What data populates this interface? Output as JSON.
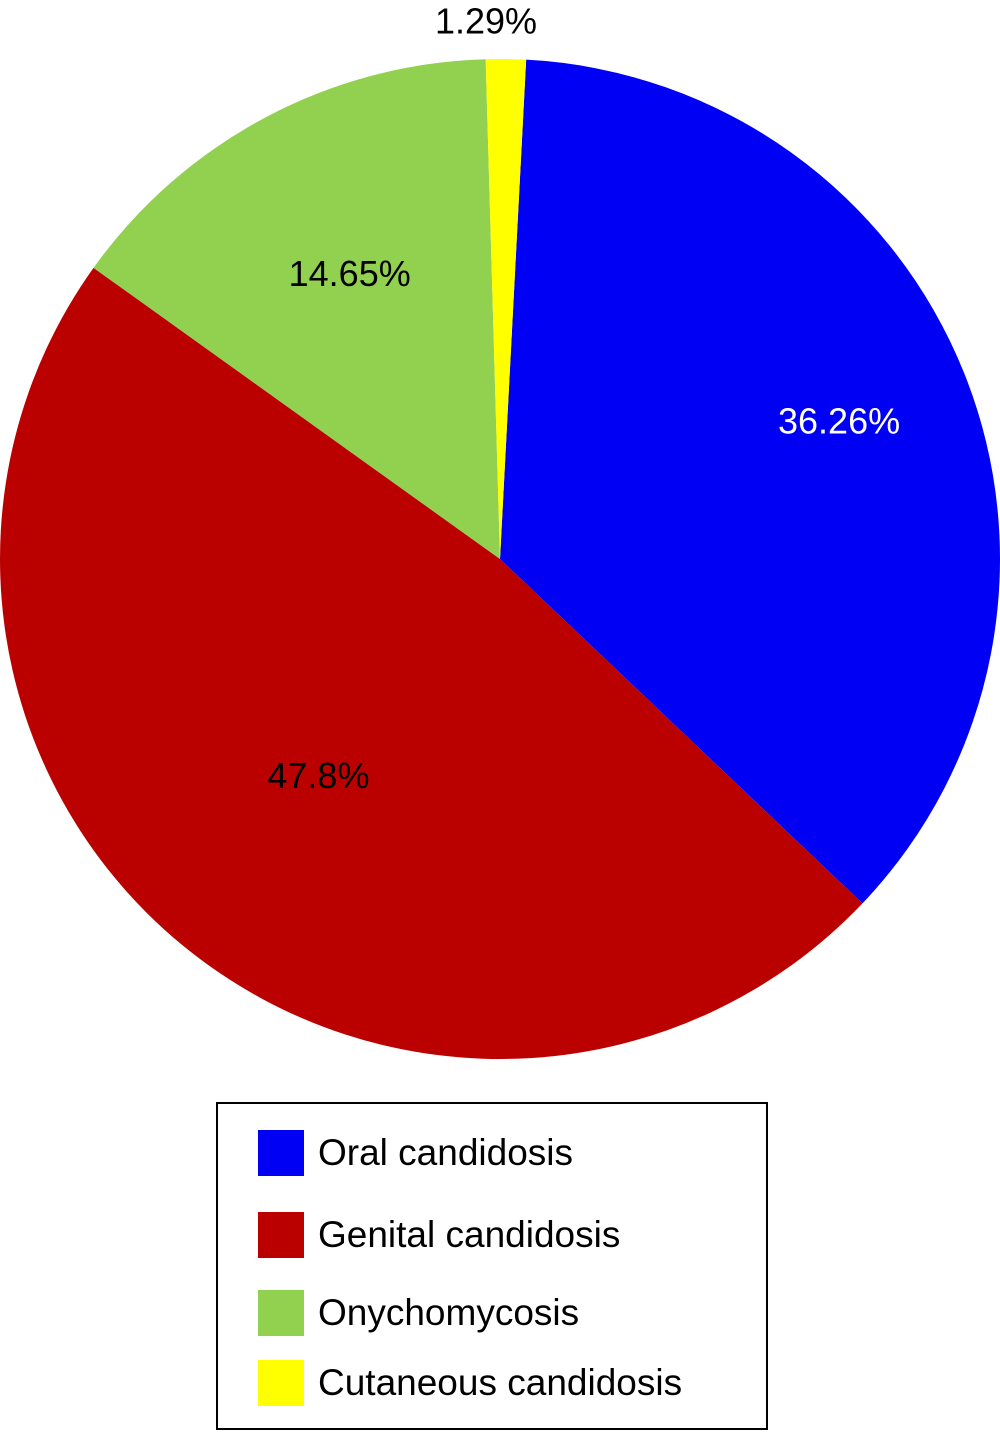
{
  "chart_data": {
    "type": "pie",
    "categories": [
      "Oral candidosis",
      "Genital candidosis",
      "Onychomycosis",
      "Cutaneous candidosis"
    ],
    "values": [
      36.26,
      47.8,
      14.65,
      1.29
    ],
    "labels": [
      "36.26%",
      "47.8%",
      "14.65%",
      "1.29%"
    ],
    "colors": [
      "#0000f5",
      "#bb0000",
      "#92d050",
      "#ffff00"
    ],
    "label_colors": [
      "#ffffff",
      "#000000",
      "#000000",
      "#000000"
    ],
    "start_angle_deg": 3,
    "direction": "clockwise",
    "legend_position": "bottom"
  }
}
